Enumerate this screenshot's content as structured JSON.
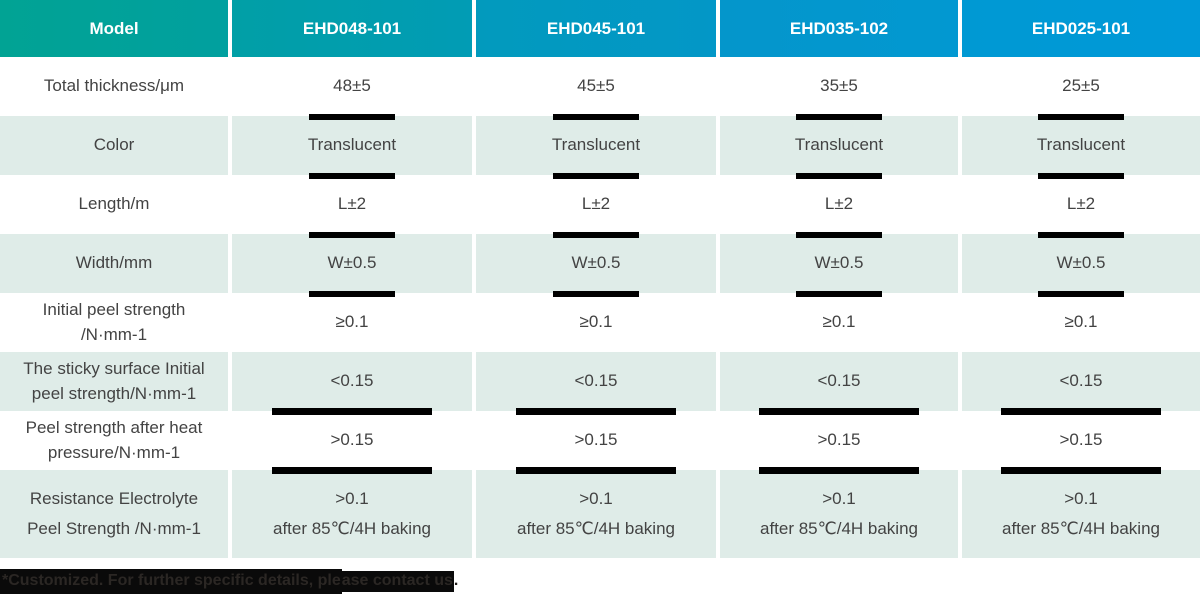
{
  "header": {
    "cells": [
      "Model",
      "EHD048-101",
      "EHD045-101",
      "EHD035-102",
      "EHD025-101"
    ]
  },
  "rows": [
    {
      "label": "Total thickness/μm",
      "values": [
        "48±5",
        "45±5",
        "35±5",
        "25±5"
      ]
    },
    {
      "label": "Color",
      "values": [
        "Translucent",
        "Translucent",
        "Translucent",
        "Translucent"
      ]
    },
    {
      "label": "Length/m",
      "values": [
        "L±2",
        "L±2",
        "L±2",
        "L±2"
      ]
    },
    {
      "label": "Width/mm",
      "values": [
        "W±0.5",
        "W±0.5",
        "W±0.5",
        "W±0.5"
      ]
    },
    {
      "label": "Initial peel strength\n/N·mm-1",
      "values": [
        "≥0.1",
        "≥0.1",
        "≥0.1",
        "≥0.1"
      ]
    },
    {
      "label": "The sticky surface Initial\npeel strength/N·mm-1",
      "values": [
        "<0.15",
        "<0.15",
        "<0.15",
        "<0.15"
      ]
    },
    {
      "label": "Peel strength after heat\npressure/N·mm-1",
      "values": [
        ">0.15",
        ">0.15",
        ">0.15",
        ">0.15"
      ]
    },
    {
      "label": "Resistance Electrolyte\nPeel Strength /N·mm-1",
      "values": [
        ">0.1\nafter 85℃/4H baking",
        ">0.1\nafter 85℃/4H baking",
        ">0.1\nafter 85℃/4H baking",
        ">0.1\nafter 85℃/4H baking"
      ]
    }
  ],
  "footnote": {
    "part1": "*Customized. For further specific details, ple",
    "part2": "ase contact us",
    "part3": "."
  },
  "colors": {
    "header_gradient_start": "#01a394",
    "header_gradient_end": "#0099d8",
    "header_text": "#ffffff",
    "row_alt_background": "#dfece8",
    "body_text": "#434343",
    "divider_bar": "#000000",
    "footnote_highlight": "#0a0a0a"
  }
}
